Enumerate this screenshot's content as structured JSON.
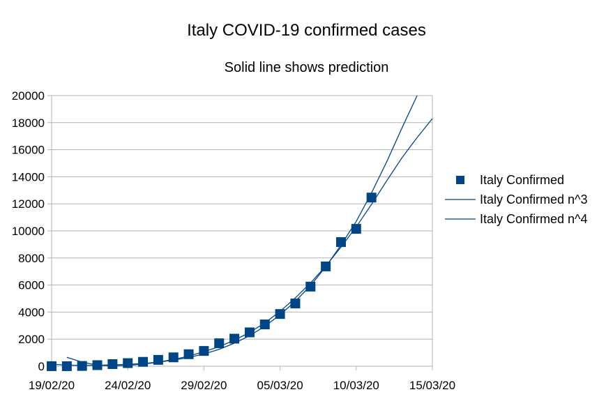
{
  "chart_data": {
    "type": "scatter",
    "title": "Italy COVID-19 confirmed cases",
    "subtitle": "Solid line shows prediction",
    "xlabel": "",
    "ylabel": "",
    "x_axis": {
      "type": "date",
      "min": "2020-02-19",
      "max": "2020-03-15",
      "ticks": [
        "19/02/20",
        "24/02/20",
        "29/02/20",
        "05/03/20",
        "10/03/20",
        "15/03/20"
      ]
    },
    "y_axis": {
      "min": 0,
      "max": 20000,
      "ticks": [
        "0",
        "2000",
        "4000",
        "6000",
        "8000",
        "10000",
        "12000",
        "14000",
        "16000",
        "18000",
        "20000"
      ]
    },
    "grid": "horizontal",
    "legend": "right",
    "colors": {
      "series": "#004586",
      "grid": "#b3b3b3",
      "axis": "#b3b3b3"
    },
    "series": [
      {
        "name": "Italy Confirmed",
        "kind": "markers",
        "marker": "square",
        "points": [
          [
            "2020-02-19",
            3
          ],
          [
            "2020-02-20",
            3
          ],
          [
            "2020-02-21",
            20
          ],
          [
            "2020-02-22",
            79
          ],
          [
            "2020-02-23",
            157
          ],
          [
            "2020-02-24",
            229
          ],
          [
            "2020-02-25",
            323
          ],
          [
            "2020-02-26",
            470
          ],
          [
            "2020-02-27",
            655
          ],
          [
            "2020-02-28",
            888
          ],
          [
            "2020-02-29",
            1128
          ],
          [
            "2020-03-01",
            1694
          ],
          [
            "2020-03-02",
            2036
          ],
          [
            "2020-03-03",
            2502
          ],
          [
            "2020-03-04",
            3089
          ],
          [
            "2020-03-05",
            3858
          ],
          [
            "2020-03-06",
            4636
          ],
          [
            "2020-03-07",
            5883
          ],
          [
            "2020-03-08",
            7375
          ],
          [
            "2020-03-09",
            9172
          ],
          [
            "2020-03-10",
            10149
          ],
          [
            "2020-03-11",
            12462
          ]
        ]
      },
      {
        "name": "Italy Confirmed n^3",
        "kind": "line",
        "points": [
          [
            "2020-02-20",
            660
          ],
          [
            "2020-02-21",
            300
          ],
          [
            "2020-02-22",
            80
          ],
          [
            "2020-02-23",
            20
          ],
          [
            "2020-02-24",
            60
          ],
          [
            "2020-02-25",
            150
          ],
          [
            "2020-02-26",
            300
          ],
          [
            "2020-02-27",
            500
          ],
          [
            "2020-02-28",
            750
          ],
          [
            "2020-02-29",
            1070
          ],
          [
            "2020-03-01",
            1450
          ],
          [
            "2020-03-02",
            1920
          ],
          [
            "2020-03-03",
            2500
          ],
          [
            "2020-03-04",
            3200
          ],
          [
            "2020-03-05",
            4050
          ],
          [
            "2020-03-06",
            5050
          ],
          [
            "2020-03-07",
            6150
          ],
          [
            "2020-03-08",
            7400
          ],
          [
            "2020-03-09",
            8800
          ],
          [
            "2020-03-10",
            10300
          ],
          [
            "2020-03-11",
            11950
          ],
          [
            "2020-03-12",
            13700
          ],
          [
            "2020-03-13",
            15400
          ],
          [
            "2020-03-14",
            16900
          ],
          [
            "2020-03-15",
            18300
          ]
        ]
      },
      {
        "name": "Italy Confirmed n^4",
        "kind": "line",
        "points": [
          [
            "2020-02-19",
            150
          ],
          [
            "2020-02-20",
            80
          ],
          [
            "2020-02-21",
            60
          ],
          [
            "2020-02-22",
            70
          ],
          [
            "2020-02-23",
            100
          ],
          [
            "2020-02-24",
            140
          ],
          [
            "2020-02-25",
            200
          ],
          [
            "2020-02-26",
            300
          ],
          [
            "2020-02-27",
            450
          ],
          [
            "2020-02-28",
            650
          ],
          [
            "2020-02-29",
            900
          ],
          [
            "2020-03-01",
            1250
          ],
          [
            "2020-03-02",
            1700
          ],
          [
            "2020-03-03",
            2250
          ],
          [
            "2020-03-04",
            2950
          ],
          [
            "2020-03-05",
            3800
          ],
          [
            "2020-03-06",
            4800
          ],
          [
            "2020-03-07",
            5950
          ],
          [
            "2020-03-08",
            7350
          ],
          [
            "2020-03-09",
            8950
          ],
          [
            "2020-03-10",
            10700
          ],
          [
            "2020-03-11",
            12800
          ],
          [
            "2020-03-12",
            15100
          ],
          [
            "2020-03-13",
            17600
          ],
          [
            "2020-03-14",
            20000
          ]
        ]
      }
    ]
  }
}
